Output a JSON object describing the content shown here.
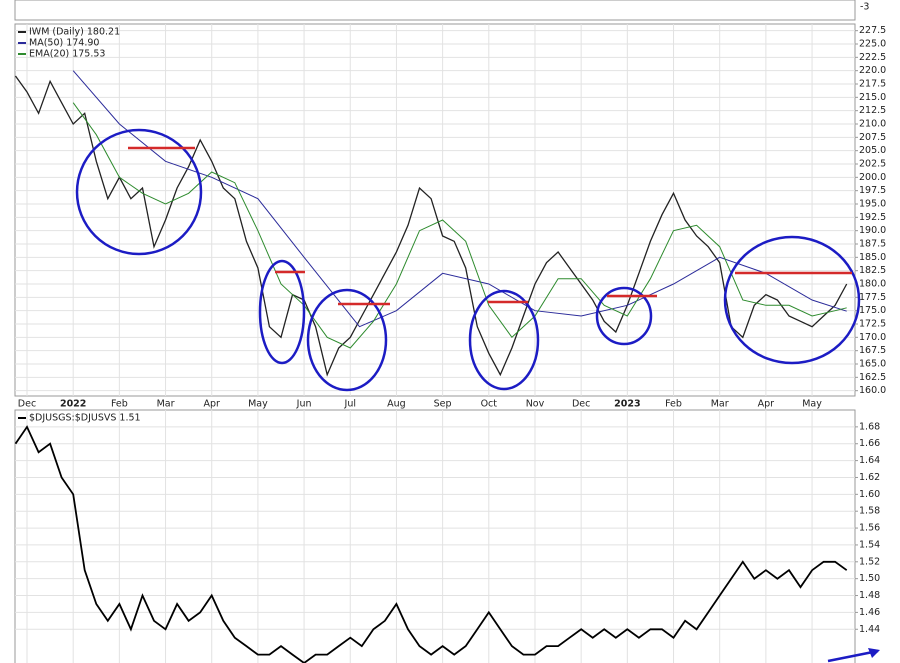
{
  "chart_data": [
    {
      "type": "line",
      "yticks": [
        -3
      ]
    },
    {
      "type": "line",
      "xlim": [
        -0.26,
        17.93
      ],
      "xticks": [
        {
          "value": 0,
          "label": "Dec"
        },
        {
          "value": 1,
          "label": "2022"
        },
        {
          "value": 2,
          "label": "Feb"
        },
        {
          "value": 3,
          "label": "Mar"
        },
        {
          "value": 4,
          "label": "Apr"
        },
        {
          "value": 5,
          "label": "May"
        },
        {
          "value": 6,
          "label": "Jun"
        },
        {
          "value": 7,
          "label": "Jul"
        },
        {
          "value": 8,
          "label": "Aug"
        },
        {
          "value": 9,
          "label": "Sep"
        },
        {
          "value": 10,
          "label": "Oct"
        },
        {
          "value": 11,
          "label": "Nov"
        },
        {
          "value": 12,
          "label": "Dec"
        },
        {
          "value": 13,
          "label": "2023"
        },
        {
          "value": 14,
          "label": "Feb"
        },
        {
          "value": 15,
          "label": "Mar"
        },
        {
          "value": 16,
          "label": "Apr"
        },
        {
          "value": 17,
          "label": "May"
        }
      ],
      "ylim": [
        159,
        228.75
      ],
      "yticks": [
        {
          "value": 160,
          "label": "160.0"
        },
        162.5,
        {
          "value": 165,
          "label": "165.0"
        },
        167.5,
        {
          "value": 170,
          "label": "170.0"
        },
        172.5,
        {
          "value": 175,
          "label": "175.0"
        },
        177.5,
        {
          "value": 180,
          "label": "180.0"
        },
        182.5,
        {
          "value": 185,
          "label": "185.0"
        },
        187.5,
        {
          "value": 190,
          "label": "190.0"
        },
        192.5,
        {
          "value": 195,
          "label": "195.0"
        },
        197.5,
        {
          "value": 200,
          "label": "200.0"
        },
        202.5,
        {
          "value": 205,
          "label": "205.0"
        },
        207.5,
        {
          "value": 210,
          "label": "210.0"
        },
        212.5,
        {
          "value": 215,
          "label": "215.0"
        },
        217.5,
        {
          "value": 220,
          "label": "220.0"
        },
        222.5,
        {
          "value": 225,
          "label": "225.0"
        },
        227.5
      ],
      "grid": true,
      "series": [
        {
          "name": "IWM (Daily) 180.21",
          "color": "#222222",
          "x": [
            -0.25,
            0,
            0.25,
            0.5,
            0.75,
            1,
            1.25,
            1.5,
            1.75,
            2,
            2.25,
            2.5,
            2.75,
            3,
            3.25,
            3.5,
            3.75,
            4,
            4.25,
            4.5,
            4.75,
            5,
            5.25,
            5.5,
            5.75,
            6,
            6.25,
            6.5,
            6.75,
            7,
            7.25,
            7.5,
            7.75,
            8,
            8.25,
            8.5,
            8.75,
            9,
            9.25,
            9.5,
            9.75,
            10,
            10.25,
            10.5,
            10.75,
            11,
            11.25,
            11.5,
            11.75,
            12,
            12.25,
            12.5,
            12.75,
            13,
            13.25,
            13.5,
            13.75,
            14,
            14.25,
            14.5,
            14.75,
            15,
            15.25,
            15.5,
            15.75,
            16,
            16.25,
            16.5,
            16.75,
            17,
            17.25,
            17.5,
            17.75
          ],
          "values": [
            219,
            216,
            212,
            218,
            214,
            210,
            212,
            203,
            196,
            200,
            196,
            198,
            187,
            192,
            198,
            202,
            207,
            203,
            198,
            196,
            188,
            183,
            172,
            170,
            178,
            177,
            172,
            163,
            168,
            170,
            174,
            178,
            182,
            186,
            191,
            198,
            196,
            189,
            188,
            183,
            172,
            167,
            163,
            168,
            174,
            180,
            184,
            186,
            183,
            180,
            177,
            173,
            171,
            176,
            182,
            188,
            193,
            197,
            192,
            189,
            187,
            184,
            172,
            170,
            176,
            178,
            177,
            174,
            173,
            172,
            174,
            176,
            180
          ]
        },
        {
          "name": "MA(50) 174.90",
          "color": "#2b2b9a",
          "x": [
            1,
            2,
            3,
            4,
            5,
            6,
            7.2,
            8,
            9,
            10,
            11,
            12,
            13,
            14,
            15,
            16,
            17,
            17.75
          ],
          "values": [
            220,
            210,
            203,
            200,
            196,
            185,
            172,
            175,
            182,
            180,
            175,
            174,
            176,
            180,
            185,
            182,
            177,
            174.9
          ]
        },
        {
          "name": "EMA(20) 175.53",
          "color": "#2e8b2e",
          "x": [
            1,
            1.5,
            2,
            2.5,
            3,
            3.5,
            4,
            4.5,
            5,
            5.5,
            6,
            6.5,
            7,
            7.5,
            8,
            8.5,
            9,
            9.5,
            10,
            10.5,
            11,
            11.5,
            12,
            12.5,
            13,
            13.5,
            14,
            14.5,
            15,
            15.5,
            16,
            16.5,
            17,
            17.5,
            17.75
          ],
          "values": [
            214,
            208,
            200,
            197,
            195,
            197,
            201,
            199,
            190,
            180,
            176,
            170,
            168,
            173,
            180,
            190,
            192,
            188,
            176,
            170,
            174,
            181,
            181,
            176,
            174,
            181,
            190,
            191,
            187,
            177,
            176,
            176,
            174,
            175,
            175.53
          ]
        }
      ]
    },
    {
      "type": "line",
      "xlim": [
        -0.26,
        17.93
      ],
      "ylim": [
        1.4,
        1.7
      ],
      "yticks": [
        1.44,
        1.46,
        1.48,
        {
          "value": 1.5,
          "label": "1.50"
        },
        1.52,
        1.54,
        1.56,
        1.58,
        {
          "value": 1.6,
          "label": "1.60"
        },
        1.62,
        1.64,
        1.66,
        1.68
      ],
      "grid": true,
      "series": [
        {
          "name": "$DJUSGS:$DJUSVS 1.51",
          "color": "#000000",
          "x": [
            -0.25,
            0,
            0.25,
            0.5,
            0.75,
            1,
            1.25,
            1.5,
            1.75,
            2,
            2.25,
            2.5,
            2.75,
            3,
            3.25,
            3.5,
            3.75,
            4,
            4.25,
            4.5,
            4.75,
            5,
            5.25,
            5.5,
            5.75,
            6,
            6.25,
            6.5,
            6.75,
            7,
            7.25,
            7.5,
            7.75,
            8,
            8.25,
            8.5,
            8.75,
            9,
            9.25,
            9.5,
            9.75,
            10,
            10.25,
            10.5,
            10.75,
            11,
            11.25,
            11.5,
            11.75,
            12,
            12.25,
            12.5,
            12.75,
            13,
            13.25,
            13.5,
            13.75,
            14,
            14.25,
            14.5,
            14.75,
            15,
            15.25,
            15.5,
            15.75,
            16,
            16.25,
            16.5,
            16.75,
            17,
            17.25,
            17.5,
            17.75
          ],
          "values": [
            1.66,
            1.68,
            1.65,
            1.66,
            1.62,
            1.6,
            1.51,
            1.47,
            1.45,
            1.47,
            1.44,
            1.48,
            1.45,
            1.44,
            1.47,
            1.45,
            1.46,
            1.48,
            1.45,
            1.43,
            1.42,
            1.41,
            1.41,
            1.42,
            1.41,
            1.4,
            1.41,
            1.41,
            1.42,
            1.43,
            1.42,
            1.44,
            1.45,
            1.47,
            1.44,
            1.42,
            1.41,
            1.42,
            1.41,
            1.42,
            1.44,
            1.46,
            1.44,
            1.42,
            1.41,
            1.41,
            1.42,
            1.42,
            1.43,
            1.44,
            1.43,
            1.44,
            1.43,
            1.44,
            1.43,
            1.44,
            1.44,
            1.43,
            1.45,
            1.44,
            1.46,
            1.48,
            1.5,
            1.52,
            1.5,
            1.51,
            1.5,
            1.51,
            1.49,
            1.51,
            1.52,
            1.52,
            1.51
          ]
        }
      ]
    }
  ]
}
